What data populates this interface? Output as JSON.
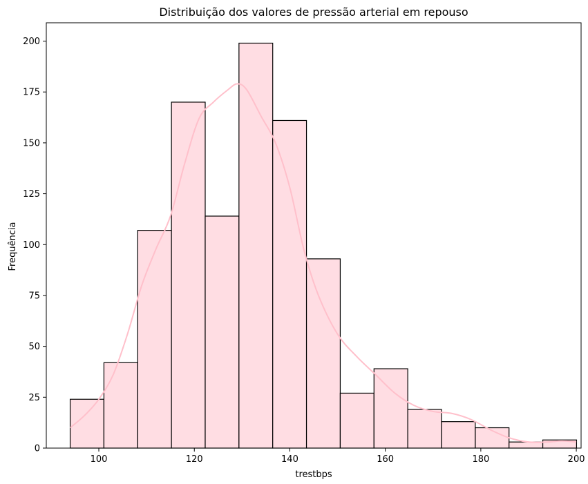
{
  "chart_data": {
    "type": "bar",
    "subtype": "histogram",
    "title": "Distribuição dos valores de pressão arterial em repouso",
    "xlabel": "trestbps",
    "ylabel": "Frequência",
    "xlim": [
      89,
      201
    ],
    "ylim": [
      0,
      209
    ],
    "x_ticks": [
      100,
      120,
      140,
      160,
      180,
      200
    ],
    "y_ticks": [
      0,
      25,
      50,
      75,
      100,
      125,
      150,
      175,
      200
    ],
    "bin_start": 94,
    "bin_width": 7.07,
    "values": [
      24,
      42,
      107,
      170,
      114,
      199,
      161,
      93,
      27,
      39,
      19,
      13,
      10,
      3,
      4
    ],
    "bar_fill": "#ffdde3",
    "bar_edge": "#000000",
    "kde_color": "#ffc0cb",
    "kde": {
      "x": [
        94,
        97,
        100,
        103,
        106,
        109,
        112,
        115,
        118,
        121,
        124,
        127,
        129,
        131,
        134,
        137,
        140,
        143,
        146,
        150,
        154,
        158,
        162,
        166,
        170,
        174,
        178,
        182,
        186,
        190,
        194,
        197,
        200
      ],
      "y": [
        10,
        16,
        24,
        36,
        56,
        80,
        98,
        114,
        140,
        162,
        170,
        176,
        179,
        176,
        163,
        150,
        128,
        97,
        75,
        56,
        45,
        36,
        27,
        21,
        18,
        17,
        14,
        9,
        5,
        3,
        3,
        3.5,
        3
      ]
    }
  }
}
